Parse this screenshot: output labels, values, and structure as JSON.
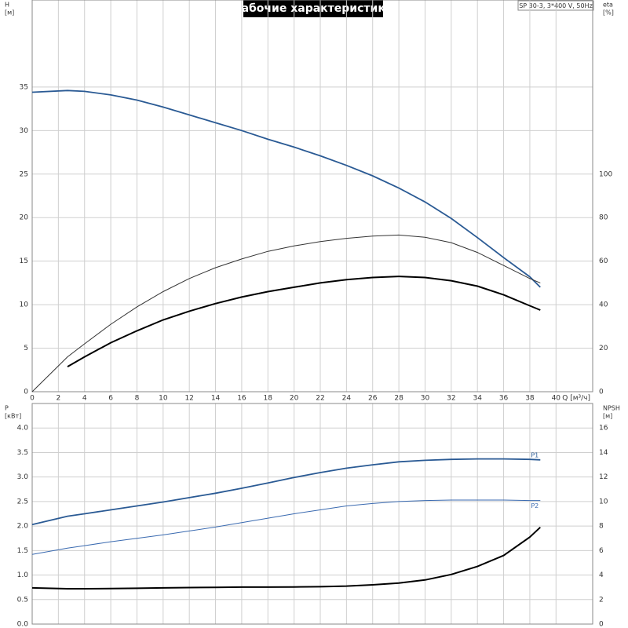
{
  "chart_data": [
    {
      "type": "line",
      "title": "Рабочие характеристики",
      "subtitle": "SP 30-3, 3*400 V, 50Hz",
      "ylabel": [
        "H",
        "[м]"
      ],
      "y2label": [
        "eta",
        "[%]"
      ],
      "xlabel": "Q [м³/ч]",
      "x": [
        0,
        2.7,
        4,
        6,
        8,
        10,
        12,
        14,
        16,
        18,
        20,
        22,
        24,
        26,
        28,
        30,
        32,
        34,
        36,
        38,
        38.8
      ],
      "xlim": [
        0,
        42.8
      ],
      "xticks": [
        0,
        2,
        4,
        6,
        8,
        10,
        12,
        14,
        16,
        18,
        20,
        22,
        24,
        26,
        28,
        30,
        32,
        34,
        36,
        38,
        40
      ],
      "ylim": [
        0,
        45
      ],
      "yticks": [
        0,
        5,
        10,
        15,
        20,
        25,
        30,
        35
      ],
      "y2lim": [
        0,
        180
      ],
      "y2ticks": [
        0,
        20,
        40,
        60,
        80,
        100
      ],
      "grid": true,
      "series": [
        {
          "color": "#2a5a94",
          "width": 1.8,
          "values": [
            34.4,
            34.6,
            34.5,
            34.1,
            33.5,
            32.7,
            31.8,
            30.9,
            30.0,
            29.0,
            28.1,
            27.1,
            26.0,
            24.8,
            23.4,
            21.8,
            19.9,
            17.7,
            15.4,
            13.2,
            12.0
          ]
        },
        {
          "color": "#333333",
          "width": 1,
          "axis": "y2",
          "values": [
            0,
            16,
            22,
            31,
            39,
            46,
            52,
            57,
            61,
            64.5,
            67,
            69,
            70.5,
            71.5,
            72,
            71,
            68.5,
            64,
            58,
            52,
            50
          ]
        },
        {
          "color": "#000000",
          "width": 2,
          "axis": "y2",
          "values": [
            null,
            11.5,
            16,
            22.5,
            28,
            33,
            37,
            40.5,
            43.5,
            46,
            48,
            50,
            51.5,
            52.5,
            53,
            52.5,
            51,
            48.5,
            44.5,
            39.5,
            37.5
          ]
        }
      ]
    },
    {
      "type": "line",
      "ylabel": [
        "P",
        "[кВт]"
      ],
      "y2label": [
        "NPSH",
        "[м]"
      ],
      "x": [
        0,
        2.7,
        4,
        6,
        8,
        10,
        12,
        14,
        16,
        18,
        20,
        22,
        24,
        26,
        28,
        30,
        32,
        34,
        36,
        38,
        38.8
      ],
      "xlim": [
        0,
        42.8
      ],
      "xticks": [
        0,
        2,
        4,
        6,
        8,
        10,
        12,
        14,
        16,
        18,
        20,
        22,
        24,
        26,
        28,
        30,
        32,
        34,
        36,
        38,
        40
      ],
      "ylim": [
        0,
        4.5
      ],
      "yticks": [
        {
          "value": 0,
          "label": "0.0"
        },
        0.5,
        {
          "value": 1,
          "label": "1.0"
        },
        1.5,
        {
          "value": 2,
          "label": "2.0"
        },
        2.5,
        {
          "value": 3,
          "label": "3.0"
        },
        3.5,
        {
          "value": 4,
          "label": "4.0"
        }
      ],
      "y2lim": [
        0,
        18
      ],
      "y2ticks": [
        0,
        2,
        4,
        6,
        8,
        10,
        12,
        14,
        16
      ],
      "grid": true,
      "series": [
        {
          "name": "P1",
          "color": "#2a5a94",
          "width": 1.8,
          "values": [
            2.03,
            2.2,
            2.25,
            2.33,
            2.41,
            2.49,
            2.58,
            2.67,
            2.77,
            2.88,
            2.99,
            3.09,
            3.18,
            3.25,
            3.31,
            3.34,
            3.36,
            3.37,
            3.37,
            3.36,
            3.35
          ]
        },
        {
          "name": "P2",
          "color": "#3a6ab0",
          "width": 1,
          "values": [
            1.42,
            1.55,
            1.6,
            1.68,
            1.75,
            1.82,
            1.9,
            1.98,
            2.07,
            2.16,
            2.25,
            2.33,
            2.41,
            2.46,
            2.5,
            2.52,
            2.53,
            2.53,
            2.53,
            2.52,
            2.52
          ]
        },
        {
          "color": "#000000",
          "width": 2,
          "axis": "y2",
          "values": [
            2.95,
            2.88,
            2.88,
            2.9,
            2.92,
            2.95,
            2.98,
            3.0,
            3.02,
            3.02,
            3.03,
            3.05,
            3.1,
            3.2,
            3.35,
            3.6,
            4.05,
            4.7,
            5.6,
            7.1,
            7.9
          ]
        }
      ]
    }
  ]
}
